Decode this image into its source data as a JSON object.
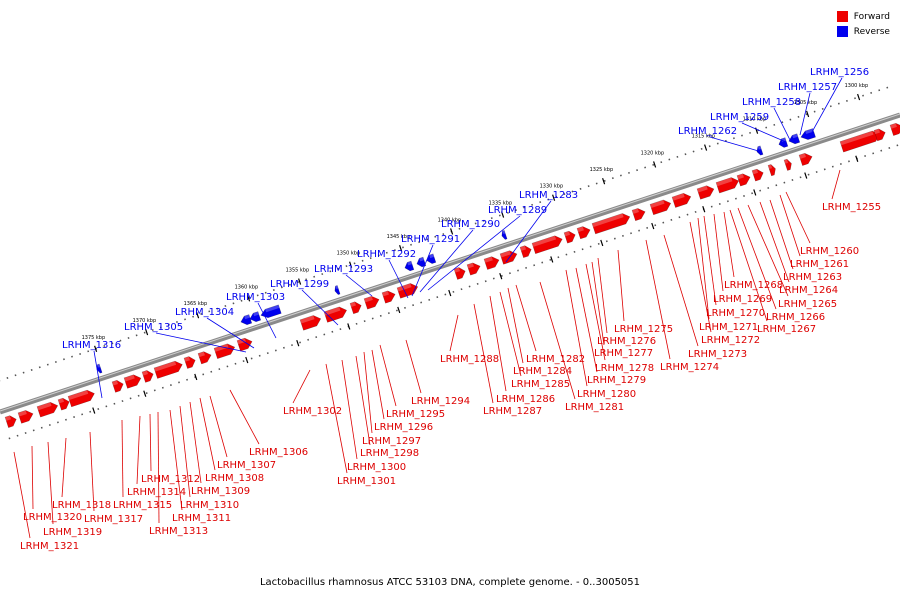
{
  "legend": {
    "forward": {
      "label": "Forward",
      "color": "#ee0000"
    },
    "reverse": {
      "label": "Reverse",
      "color": "#0000ee"
    }
  },
  "caption": "Lactobacillus rhamnosus ATCC 53103 DNA, complete genome. - 0..3005051",
  "ticks": [
    "1300 kbp",
    "1305 kbp",
    "1310 kbp",
    "1315 kbp",
    "1320 kbp",
    "1325 kbp",
    "1330 kbp",
    "1335 kbp",
    "1340 kbp",
    "1345 kbp",
    "1350 kbp",
    "1355 kbp",
    "1360 kbp",
    "1365 kbp",
    "1370 kbp",
    "1375 kbp"
  ],
  "reverse_genes": [
    "LRHM_1256",
    "LRHM_1257",
    "LRHM_1258",
    "LRHM_1259",
    "LRHM_1262",
    "LRHM_1283",
    "LRHM_1289",
    "LRHM_1290",
    "LRHM_1291",
    "LRHM_1292",
    "LRHM_1293",
    "LRHM_1299",
    "LRHM_1303",
    "LRHM_1304",
    "LRHM_1305",
    "LRHM_1316"
  ],
  "forward_genes": [
    "LRHM_1255",
    "LRHM_1260",
    "LRHM_1261",
    "LRHM_1263",
    "LRHM_1264",
    "LRHM_1265",
    "LRHM_1266",
    "LRHM_1267",
    "LRHM_1268",
    "LRHM_1269",
    "LRHM_1270",
    "LRHM_1271",
    "LRHM_1272",
    "LRHM_1273",
    "LRHM_1274",
    "LRHM_1275",
    "LRHM_1276",
    "LRHM_1277",
    "LRHM_1278",
    "LRHM_1279",
    "LRHM_1280",
    "LRHM_1281",
    "LRHM_1282",
    "LRHM_1284",
    "LRHM_1285",
    "LRHM_1286",
    "LRHM_1287",
    "LRHM_1288",
    "LRHM_1294",
    "LRHM_1295",
    "LRHM_1296",
    "LRHM_1297",
    "LRHM_1298",
    "LRHM_1300",
    "LRHM_1301",
    "LRHM_1302",
    "LRHM_1306",
    "LRHM_1307",
    "LRHM_1308",
    "LRHM_1309",
    "LRHM_1310",
    "LRHM_1311",
    "LRHM_1312",
    "LRHM_1313",
    "LRHM_1314",
    "LRHM_1315",
    "LRHM_1317",
    "LRHM_1318",
    "LRHM_1319",
    "LRHM_1320",
    "LRHM_1321"
  ]
}
